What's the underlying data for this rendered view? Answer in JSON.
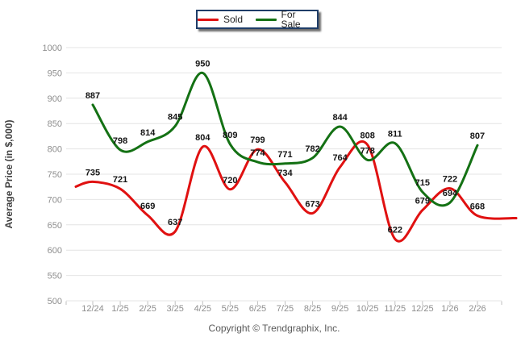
{
  "legend": {
    "items": [
      {
        "name": "Sold",
        "color": "#e01111"
      },
      {
        "name": "For Sale",
        "color": "#147114"
      }
    ]
  },
  "y_axis": {
    "title": "Average Price (in $,000)",
    "ticks": [
      1000,
      950,
      900,
      850,
      800,
      750,
      700,
      650,
      600,
      550,
      500
    ]
  },
  "footer": {
    "copyright": "Copyright © Trendgraphix, Inc."
  },
  "colors": {
    "sold": "#e01111",
    "for_sale": "#147114",
    "gridline": "#e4e4e4",
    "axis_tick": "#bfbfbf",
    "tick_label": "#8e8e8e",
    "data_label": "#151515",
    "legend_border": "#1f3d68"
  },
  "chart_data": {
    "type": "line",
    "line_style": "smooth",
    "categories": [
      "12/24",
      "1/25",
      "2/25",
      "3/25",
      "4/25",
      "5/25",
      "6/25",
      "7/25",
      "8/25",
      "9/25",
      "10/25",
      "11/25",
      "12/25",
      "1/26",
      "2/26"
    ],
    "series": [
      {
        "name": "Sold",
        "color": "#e01111",
        "values": [
          735,
          721,
          669,
          637,
          804,
          720,
          799,
          734,
          673,
          764,
          808,
          622,
          679,
          722,
          668
        ]
      },
      {
        "name": "For Sale",
        "color": "#147114",
        "values": [
          887,
          798,
          814,
          845,
          950,
          809,
          774,
          771,
          782,
          844,
          778,
          811,
          715,
          694,
          807
        ]
      }
    ],
    "title": "",
    "xlabel": "",
    "ylabel": "Average Price (in $,000)",
    "ylim": [
      500,
      1000
    ],
    "y_step": 50,
    "grid": "horizontal",
    "legend_position": "top-center",
    "data_labels": true
  }
}
